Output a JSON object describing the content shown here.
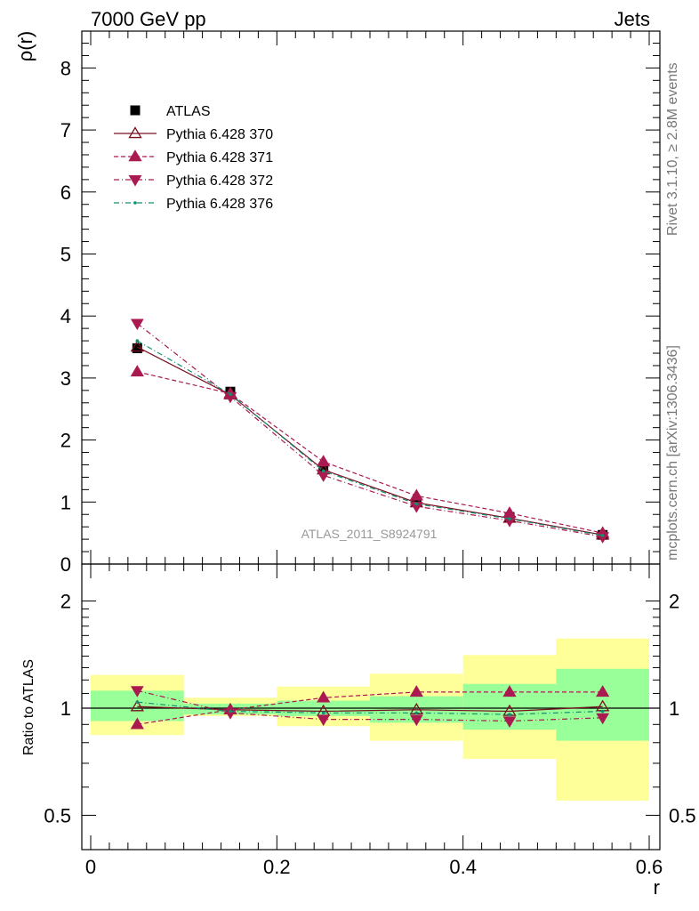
{
  "header": {
    "left": "7000 GeV pp",
    "right": "Jets"
  },
  "side_text": {
    "top": "Rivet 3.1.10, ≥ 2.8M events",
    "bottom": "mcplots.cern.ch [arXiv:1306.3436]"
  },
  "watermark": "ATLAS_2011_S8924791",
  "chart_data": [
    {
      "type": "line",
      "ylabel": "ρ(r)",
      "xlim": [
        0,
        0.6
      ],
      "ylim": [
        0,
        8.6
      ],
      "yticks": [
        "0",
        "1",
        "2",
        "3",
        "4",
        "5",
        "6",
        "7",
        "8"
      ],
      "x": [
        0.05,
        0.15,
        0.25,
        0.35,
        0.45,
        0.55
      ],
      "series": [
        {
          "name": "ATLAS",
          "color": "#000000",
          "marker": "square",
          "values": [
            3.48,
            2.78,
            1.55,
            1.0,
            0.76,
            0.47
          ]
        },
        {
          "name": "Pythia 6.428 370",
          "color": "#7a1020",
          "marker": "triangle-up-open",
          "line": "solid",
          "values": [
            3.5,
            2.73,
            1.52,
            0.99,
            0.74,
            0.47
          ]
        },
        {
          "name": "Pythia 6.428 371",
          "color": "#aa1a50",
          "marker": "triangle-up",
          "line": "dashed",
          "values": [
            3.1,
            2.75,
            1.65,
            1.1,
            0.82,
            0.5
          ]
        },
        {
          "name": "Pythia 6.428 372",
          "color": "#aa1a50",
          "marker": "triangle-down",
          "line": "dashdot",
          "values": [
            3.88,
            2.7,
            1.43,
            0.93,
            0.7,
            0.44
          ]
        },
        {
          "name": "Pythia 6.428 376",
          "color": "#109070",
          "marker": "dot",
          "line": "dashdot",
          "values": [
            3.6,
            2.74,
            1.5,
            0.97,
            0.73,
            0.46
          ]
        }
      ]
    },
    {
      "type": "line",
      "ylabel": "Ratio to ATLAS",
      "xlabel": "r",
      "ylog": true,
      "xlim": [
        0,
        0.6
      ],
      "ylim": [
        0.42,
        2.3
      ],
      "xticks": [
        "0",
        "0.2",
        "0.4",
        "0.6"
      ],
      "yticks": [
        "0.5",
        "1",
        "2"
      ],
      "bands": [
        {
          "x0": 0.0,
          "x1": 0.1,
          "stat": [
            0.92,
            1.12
          ],
          "total": [
            0.84,
            1.24
          ]
        },
        {
          "x0": 0.1,
          "x1": 0.2,
          "stat": [
            0.96,
            1.03
          ],
          "total": [
            0.95,
            1.07
          ]
        },
        {
          "x0": 0.2,
          "x1": 0.3,
          "stat": [
            0.95,
            1.05
          ],
          "total": [
            0.89,
            1.15
          ]
        },
        {
          "x0": 0.3,
          "x1": 0.4,
          "stat": [
            0.91,
            1.08
          ],
          "total": [
            0.81,
            1.25
          ]
        },
        {
          "x0": 0.4,
          "x1": 0.5,
          "stat": [
            0.87,
            1.17
          ],
          "total": [
            0.72,
            1.41
          ]
        },
        {
          "x0": 0.5,
          "x1": 0.6,
          "stat": [
            0.81,
            1.29
          ],
          "total": [
            0.55,
            1.57
          ]
        }
      ],
      "x": [
        0.05,
        0.15,
        0.25,
        0.35,
        0.45,
        0.55
      ],
      "series": [
        {
          "name": "Pythia 6.428 370",
          "color": "#7a1020",
          "marker": "triangle-up-open",
          "line": "solid",
          "values": [
            1.01,
            0.99,
            0.98,
            0.99,
            0.98,
            1.01
          ]
        },
        {
          "name": "Pythia 6.428 371",
          "color": "#aa1a50",
          "marker": "triangle-up",
          "line": "dashed",
          "values": [
            0.9,
            0.99,
            1.07,
            1.11,
            1.11,
            1.11
          ]
        },
        {
          "name": "Pythia 6.428 372",
          "color": "#aa1a50",
          "marker": "triangle-down",
          "line": "dashdot",
          "values": [
            1.12,
            0.97,
            0.93,
            0.93,
            0.92,
            0.94
          ]
        },
        {
          "name": "Pythia 6.428 376",
          "color": "#109070",
          "marker": "dot",
          "line": "dashdot",
          "values": [
            1.04,
            0.98,
            0.97,
            0.97,
            0.96,
            0.98
          ]
        }
      ]
    }
  ]
}
